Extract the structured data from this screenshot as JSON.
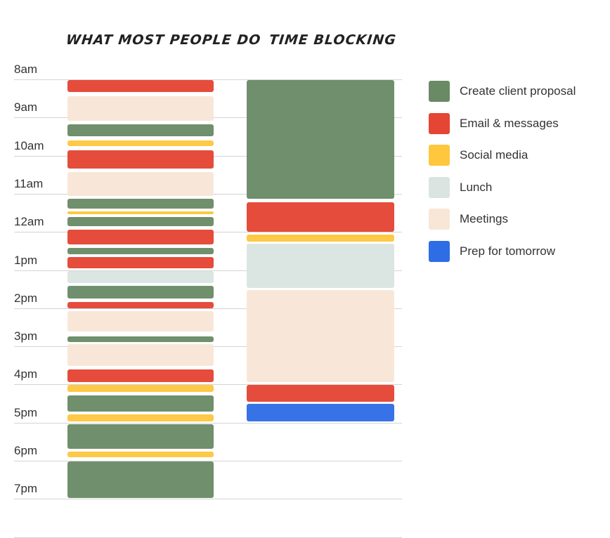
{
  "titles": {
    "left": "WHAT MOST PEOPLE DO",
    "right": "TIME BLOCKING"
  },
  "hours": [
    "8am",
    "9am",
    "10am",
    "11am",
    "12am",
    "1pm",
    "2pm",
    "3pm",
    "4pm",
    "5pm",
    "6pm",
    "7pm"
  ],
  "categories": {
    "proposal": {
      "label": "Create client proposal",
      "color": "#6a8a66"
    },
    "email": {
      "label": "Email & messages",
      "color": "#e44534"
    },
    "social": {
      "label": "Social media",
      "color": "#fec73e"
    },
    "lunch": {
      "label": "Lunch",
      "color": "#dae5e1"
    },
    "meetings": {
      "label": "Meetings",
      "color": "#f8e6d6"
    },
    "prep": {
      "label": "Prep for tomorrow",
      "color": "#2f6de6"
    }
  },
  "legend": [
    "proposal",
    "email",
    "social",
    "lunch",
    "meetings",
    "prep"
  ],
  "schedules": {
    "most_people": [
      {
        "cat": "email",
        "start": "8:00",
        "end": "8:20"
      },
      {
        "cat": "meetings",
        "start": "8:25",
        "end": "9:05"
      },
      {
        "cat": "proposal",
        "start": "9:10",
        "end": "9:30"
      },
      {
        "cat": "social",
        "start": "9:35",
        "end": "9:45"
      },
      {
        "cat": "email",
        "start": "9:50",
        "end": "10:20"
      },
      {
        "cat": "meetings",
        "start": "10:25",
        "end": "11:03"
      },
      {
        "cat": "proposal",
        "start": "11:07",
        "end": "11:23"
      },
      {
        "cat": "social",
        "start": "11:27",
        "end": "11:32"
      },
      {
        "cat": "proposal",
        "start": "11:36",
        "end": "11:51"
      },
      {
        "cat": "email",
        "start": "11:55",
        "end": "12:20"
      },
      {
        "cat": "proposal",
        "start": "12:24",
        "end": "12:35"
      },
      {
        "cat": "email",
        "start": "12:38",
        "end": "12:57"
      },
      {
        "cat": "lunch",
        "start": "13:00",
        "end": "13:20"
      },
      {
        "cat": "proposal",
        "start": "13:24",
        "end": "13:45"
      },
      {
        "cat": "email",
        "start": "13:49",
        "end": "14:00"
      },
      {
        "cat": "meetings",
        "start": "14:03",
        "end": "14:37"
      },
      {
        "cat": "proposal",
        "start": "14:43",
        "end": "14:53"
      },
      {
        "cat": "meetings",
        "start": "14:56",
        "end": "15:31"
      },
      {
        "cat": "email",
        "start": "15:35",
        "end": "15:56"
      },
      {
        "cat": "social",
        "start": "16:00",
        "end": "16:12"
      },
      {
        "cat": "proposal",
        "start": "16:16",
        "end": "16:43"
      },
      {
        "cat": "social",
        "start": "16:46",
        "end": "16:58"
      },
      {
        "cat": "proposal",
        "start": "17:01",
        "end": "17:41"
      },
      {
        "cat": "social",
        "start": "17:45",
        "end": "17:55"
      },
      {
        "cat": "proposal",
        "start": "18:00",
        "end": "18:59"
      }
    ],
    "time_blocking": [
      {
        "cat": "proposal",
        "start": "8:00",
        "end": "11:08"
      },
      {
        "cat": "email",
        "start": "11:12",
        "end": "12:00"
      },
      {
        "cat": "social",
        "start": "12:03",
        "end": "12:15"
      },
      {
        "cat": "lunch",
        "start": "12:17",
        "end": "13:28"
      },
      {
        "cat": "meetings",
        "start": "13:30",
        "end": "15:56"
      },
      {
        "cat": "email",
        "start": "16:00",
        "end": "16:27"
      },
      {
        "cat": "prep",
        "start": "16:29",
        "end": "16:58"
      }
    ]
  }
}
